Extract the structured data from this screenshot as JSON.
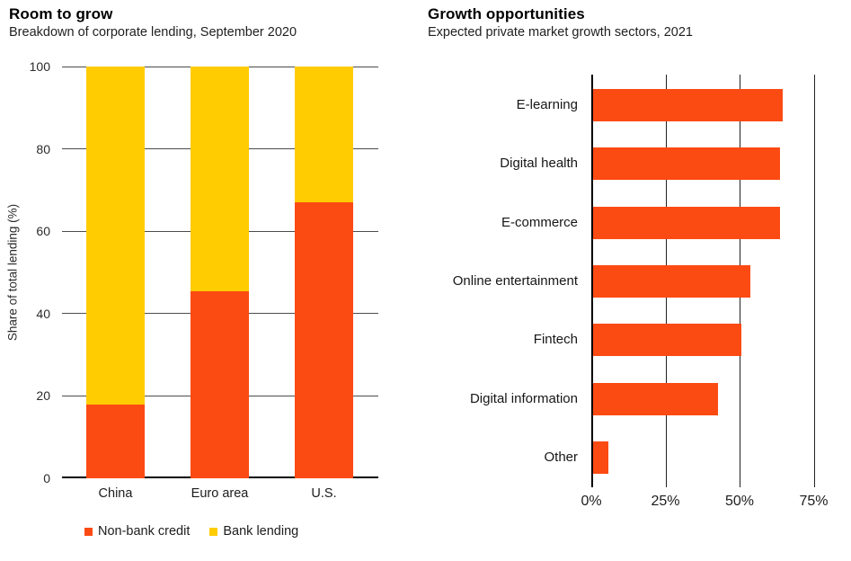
{
  "page": {
    "background": "#ffffff"
  },
  "colors": {
    "non_bank_red": "#FC4A13",
    "bank_yellow": "#FFCC02",
    "axis_black": "#000000",
    "gridline_gray": "#4c4c4c"
  },
  "chart_data": [
    {
      "id": "room-to-grow",
      "type": "bar",
      "subtype": "stacked-vertical",
      "title": "Room to grow",
      "subtitle": "Breakdown of corporate lending, September 2020",
      "ylabel": "Share of total lending (%)",
      "xlabel": "",
      "categories": [
        "China",
        "Euro area",
        "U.S."
      ],
      "series": [
        {
          "name": "Non-bank credit",
          "color": "#FC4A13",
          "values": [
            18,
            45.5,
            67
          ]
        },
        {
          "name": "Bank lending",
          "color": "#FFCC02",
          "values": [
            82,
            54.5,
            33
          ]
        }
      ],
      "y_ticks": [
        0,
        20,
        40,
        60,
        80,
        100
      ],
      "ylim": [
        0,
        100
      ],
      "grid": "horizontal",
      "legend_position": "bottom"
    },
    {
      "id": "growth-opportunities",
      "type": "bar",
      "subtype": "horizontal",
      "title": "Growth opportunities",
      "subtitle": "Expected private market growth sectors, 2021",
      "categories": [
        "E-learning",
        "Digital health",
        "E-commerce",
        "Online entertainment",
        "Fintech",
        "Digital information",
        "Other"
      ],
      "values": [
        64,
        63,
        63,
        53,
        50,
        42,
        5
      ],
      "bar_color": "#FC4A13",
      "x_ticks": [
        "0%",
        "25%",
        "50%",
        "75%"
      ],
      "x_tick_values": [
        0,
        25,
        50,
        75
      ],
      "xlim": [
        0,
        82.5
      ],
      "grid": "vertical",
      "legend_position": "none"
    }
  ]
}
